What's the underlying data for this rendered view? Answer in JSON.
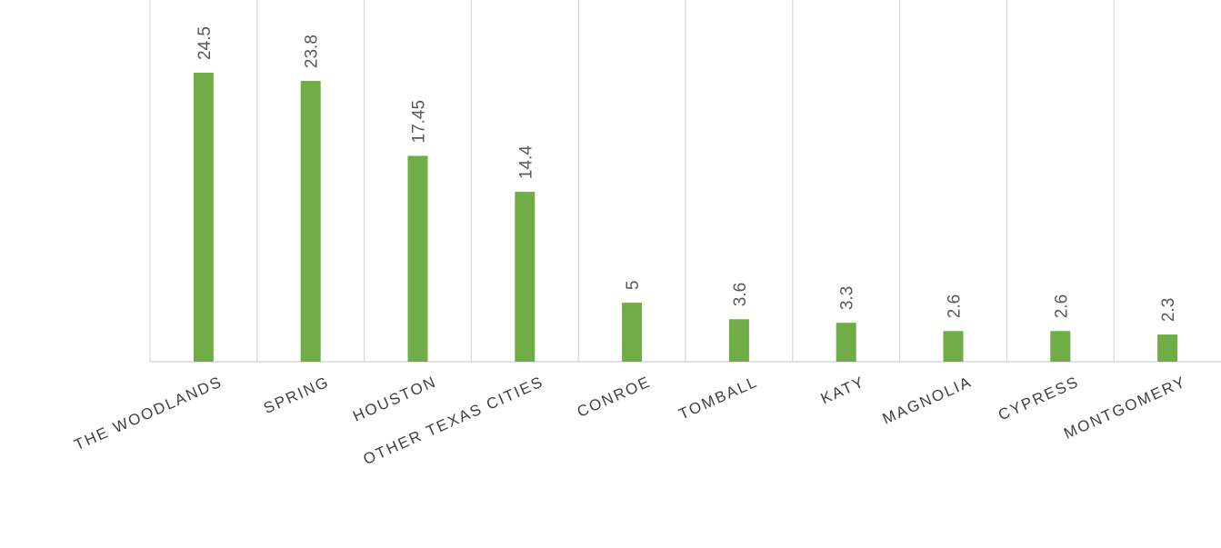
{
  "chart_data": {
    "type": "bar",
    "categories": [
      "THE WOODLANDS",
      "SPRING",
      "HOUSTON",
      "OTHER TEXAS CITIES",
      "CONROE",
      "TOMBALL",
      "KATY",
      "MAGNOLIA",
      "CYPRESS",
      "MONTGOMERY"
    ],
    "values": [
      24.5,
      23.8,
      17.45,
      14.4,
      5,
      3.6,
      3.3,
      2.6,
      2.6,
      2.3
    ],
    "color": "#70ad47"
  }
}
